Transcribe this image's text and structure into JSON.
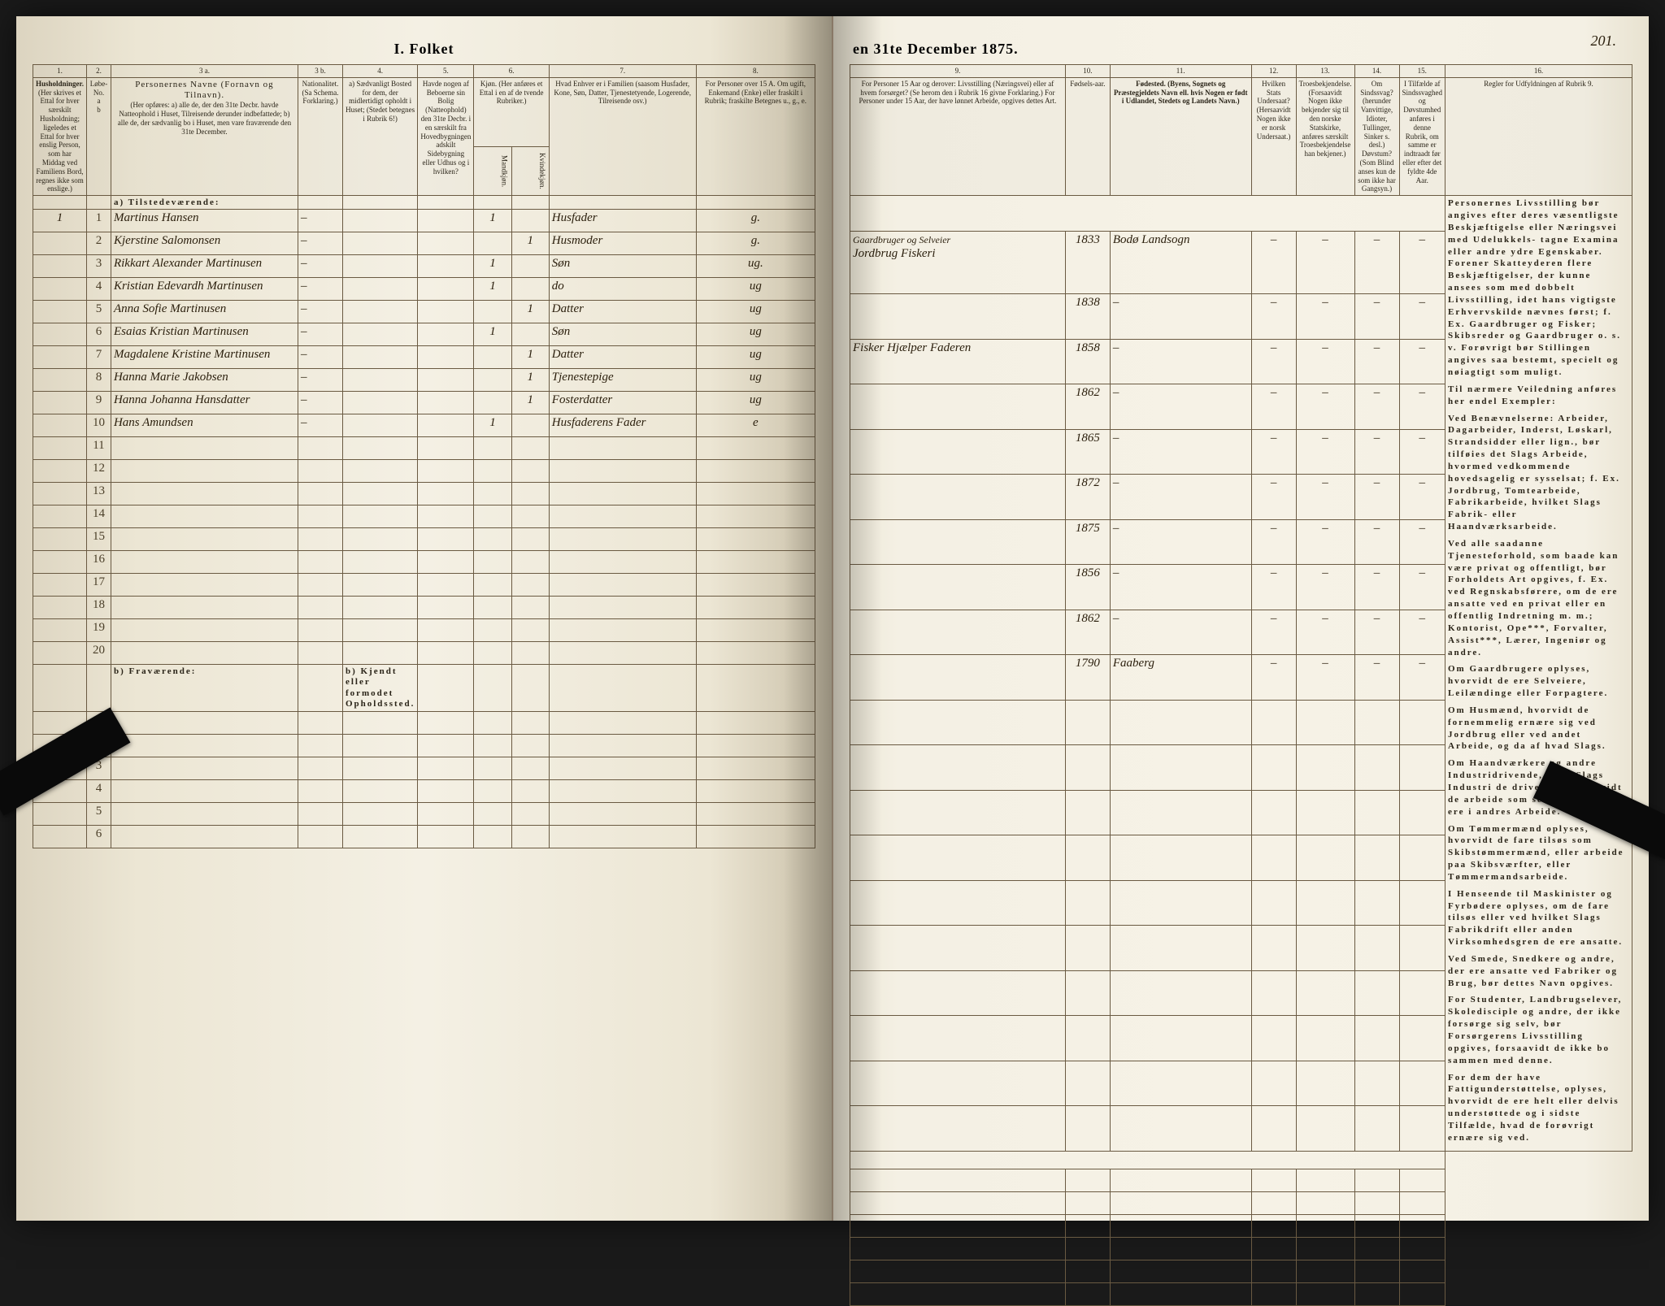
{
  "title_left": "I.  Folket",
  "title_right": "en 31te December 1875.",
  "page_number": "201.",
  "headers_left": {
    "c1": "1.",
    "c2": "2.",
    "c3a": "3 a.",
    "c3b": "3 b.",
    "c4": "4.",
    "c5": "5.",
    "c6": "6.",
    "c7": "7.",
    "c8": "8.",
    "h1": "Husholdninger.",
    "h1_sub": "(Her skrives et Ettal for hver særskilt Husholdning; ligeledes et Ettal for hver enslig Person, som har Middag ved Familiens Bord, regnes ikke som enslige.)",
    "h3": "Personernes Navne (Fornavn og Tilnavn).",
    "h3_sub": "(Her opføres: a) alle de, der den 31te Decbr. havde Natteophold i Huset, Tilreisende derunder indbefattede; b) alle de, der sædvanlig bo i Huset, men vare fraværende den 31te December.",
    "h3b": "Nationalitet. (Sa Schema. Forklaring.)",
    "h4": "a) Sædvanligt Bosted for dem, der midlertidigt opholdt i Huset; (Stedet betegnes i Rubrik 6!)",
    "h5": "Havde nogen af Beboerne sin Bolig (Natteophold) den 31te Decbr. i en særskilt fra Hovedbygningen adskilt Sidebygning eller Udhus og i hvilken?",
    "h6": "Kjøn. (Her anføres et Ettal i en af de tvende Rubriker.)",
    "h6a": "Mandkjøn.",
    "h6b": "Kvindekjøn.",
    "h7": "Hvad Enhver er i Familien (saasom Husfader, Kone, Søn, Datter, Tjenestetyende, Logerende, Tilreisende osv.)",
    "h8": "For Personer over 15 A. Om ugift, Enkemand (Enke) eller fraskilt i Rubrik; fraskilte Betegnes u., g., e."
  },
  "headers_right": {
    "c9": "9.",
    "c10": "10.",
    "c11": "11.",
    "c12": "12.",
    "c13": "13.",
    "c14": "14.",
    "c15": "15.",
    "c16": "16.",
    "h9": "For Personer 15 Aar og derover: Livsstilling (Næringsvei) eller af hvem forsørget? (Se herom den i Rubrik 16 givne Forklaring.) For Personer under 15 Aar, der have lønnet Arbeide, opgives dettes Art.",
    "h10": "Fødsels-aar.",
    "h11": "Fødested. (Byens, Sognets og Præstegjeldets Navn ell. hvis Nogen er født i Udlandet, Stedets og Landets Navn.)",
    "h12": "Hvilken Stats Undersaat? (Hersaavidt Nogen ikke er norsk Undersaat.)",
    "h13": "Troesbekjendelse. (Forsaavidt Nogen ikke bekjender sig til den norske Statskirke, anføres særskilt Troesbekjendelse han bekjener.)",
    "h14": "Om Sindssvag? (herunder Vanvittige, Idioter, Tullinger, Sinker s. desl.) Døvstum? (Som Blind anses kun de som ikke har Gangsyn.)",
    "h15": "I Tilfælde af Sindssvaghed og Døvstumhed anføres i denne Rubrik, om samme er indtraadt før eller efter det fyldte 4de Aar.",
    "h16": "Regler for Udfyldningen af Rubrik 9."
  },
  "section_a": "a) Tilstedeværende:",
  "section_b": "b) Fraværende:",
  "section_b_col": "b) Kjendt eller formodet Opholdssted.",
  "rows_a": [
    {
      "n": "1",
      "h": "1",
      "name": "Martinus Hansen",
      "m": "1",
      "f": "",
      "rel": "Husfader",
      "civ": "g.",
      "occ": "Jordbrug Fiskeri",
      "occ_pre": "Gaardbruger og Selveier",
      "yr": "1833",
      "place": "Bodø Landsogn"
    },
    {
      "n": "2",
      "h": "",
      "name": "Kjerstine Salomonsen",
      "m": "",
      "f": "1",
      "rel": "Husmoder",
      "civ": "g.",
      "occ": "",
      "yr": "1838",
      "place": "–"
    },
    {
      "n": "3",
      "h": "",
      "name": "Rikkart Alexander Martinusen",
      "m": "1",
      "f": "",
      "rel": "Søn",
      "civ": "ug.",
      "occ": "Fisker  Hjælper Faderen",
      "yr": "1858",
      "place": "–"
    },
    {
      "n": "4",
      "h": "",
      "name": "Kristian Edevardh Martinusen",
      "m": "1",
      "f": "",
      "rel": "do",
      "civ": "ug",
      "occ": "",
      "yr": "1862",
      "place": "–"
    },
    {
      "n": "5",
      "h": "",
      "name": "Anna Sofie Martinusen",
      "m": "",
      "f": "1",
      "rel": "Datter",
      "civ": "ug",
      "occ": "",
      "yr": "1865",
      "place": "–"
    },
    {
      "n": "6",
      "h": "",
      "name": "Esaias Kristian Martinusen",
      "m": "1",
      "f": "",
      "rel": "Søn",
      "civ": "ug",
      "occ": "",
      "yr": "1872",
      "place": "–"
    },
    {
      "n": "7",
      "h": "",
      "name": "Magdalene Kristine Martinusen",
      "m": "",
      "f": "1",
      "rel": "Datter",
      "civ": "ug",
      "occ": "",
      "yr": "1875",
      "place": "–"
    },
    {
      "n": "8",
      "h": "",
      "name": "Hanna Marie Jakobsen",
      "m": "",
      "f": "1",
      "rel": "Tjenestepige",
      "civ": "ug",
      "occ": "",
      "yr": "1856",
      "place": "–"
    },
    {
      "n": "9",
      "h": "",
      "name": "Hanna Johanna Hansdatter",
      "m": "",
      "f": "1",
      "rel": "Fosterdatter",
      "civ": "ug",
      "occ": "",
      "yr": "1862",
      "place": "–"
    },
    {
      "n": "10",
      "h": "",
      "name": "Hans Amundsen",
      "m": "1",
      "f": "",
      "rel": "Husfaderens Fader",
      "civ": "e",
      "occ": "",
      "yr": "1790",
      "place": "Faaberg"
    }
  ],
  "empty_a": [
    "11",
    "12",
    "13",
    "14",
    "15",
    "16",
    "17",
    "18",
    "19",
    "20"
  ],
  "empty_b": [
    "1",
    "2",
    "3",
    "4",
    "5",
    "6"
  ],
  "sidetext": "Personernes Livsstilling bør angives efter deres væsentligste Beskjæftigelse eller Næringsvei med Udelukkels- tagne Examina eller andre ydre Egenskaber. Forener Skatteyderen flere Beskjæftigelser, der kunne ansees som med dobbelt Livsstilling, idet hans vigtigste Erhvervskilde nævnes først; f. Ex. Gaardbruger og Fisker; Skibsreder og Gaardbruger o. s. v. Forøvrigt bør Stillingen angives saa bestemt, specielt og nøiagtigt som muligt.\n\nTil nærmere Veiledning anføres her endel Exempler:\n\nVed Benævnelserne: Arbeider, Dagarbeider, Inderst, Løskarl, Strandsidder eller lign., bør tilføies det Slags Arbeide, hvormed vedkommende hovedsagelig er sysselsat; f. Ex. Jordbrug, Tomtearbeide, Fabrikarbeide, hvilket Slags Fabrik- eller Haandværksarbeide.\n\nVed alle saadanne Tjenesteforhold, som baade kan være privat og offentligt, bør Forholdets Art opgives, f. Ex. ved Regnskabsførere, om de ere ansatte ved en privat eller en offentlig Indretning m. m.; Kontorist, Ope***, Forvalter, Assist***, Lærer, Ingeniør og andre.\n\nOm Gaardbrugere oplyses, hvorvidt de ere Selveiere, Leilændinge eller Forpagtere.\n\nOm Husmænd, hvorvidt de fornemmelig ernære sig ved Jordbrug eller ved andet Arbeide, og da af hvad Slags.\n\nOm Haandværkere og andre Industridrivende, hvad Slags Industri de drive, samt hvorvidt de arbeide som selvstændigt eller ere i andres Arbeide.\n\nOm Tømmermænd oplyses, hvorvidt de fare tilsøs som Skibstømmermænd, eller arbeide paa Skibsværfter, eller Tømmermandsarbeide.\n\nI Henseende til Maskinister og Fyrbødere oplyses, om de fare tilsøs eller ved hvilket Slags Fabrikdrift eller anden Virksomhedsgren de ere ansatte.\n\nVed Smede, Snedkere og andre, der ere ansatte ved Fabriker og Brug, bør dettes Navn opgives.\n\nFor Studenter, Landbrugselever, Skoledisciple og andre, der ikke forsørge sig selv, bør Forsørgerens Livsstilling opgives, forsaavidt de ikke bo sammen med denne.\n\nFor dem der have Fattigunderstøttelse, oplyses, hvorvidt de ere helt eller delvis understøttede og i sidste Tilfælde, hvad de forøvrigt ernære sig ved."
}
